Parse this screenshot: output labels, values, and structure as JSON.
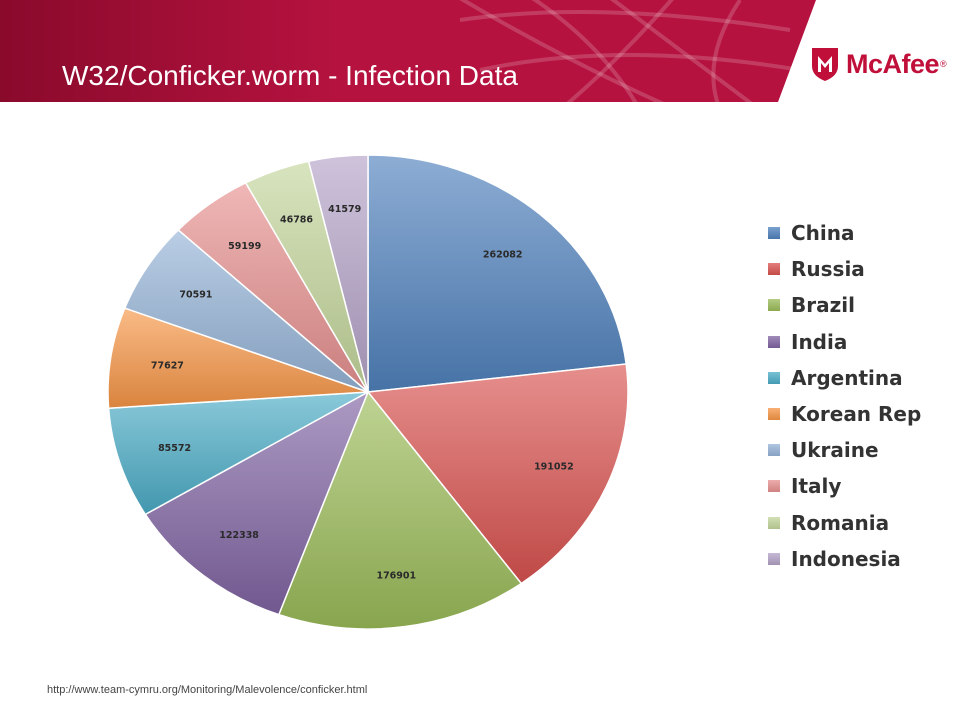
{
  "slide": {
    "title": "W32/Conficker.worm - Infection Data",
    "brand": "McAfee",
    "brand_mark": "®",
    "source_url": "http://www.team-cymru.org/Monitoring/Malevolence/conficker.html"
  },
  "colors": {
    "banner": "#b5123f",
    "banner_dark": "#8a0a2c",
    "brand_red": "#c0103a"
  },
  "chart_data": {
    "type": "pie",
    "title": "",
    "legend_position": "right",
    "slices": [
      {
        "label": "China",
        "value": 262082,
        "color": "#4f81bd"
      },
      {
        "label": "Russia",
        "value": 191052,
        "color": "#d9534f"
      },
      {
        "label": "Brazil",
        "value": 176901,
        "color": "#9bbb59"
      },
      {
        "label": "India",
        "value": 122338,
        "color": "#8064a2"
      },
      {
        "label": "Argentina",
        "value": 85572,
        "color": "#4bacc6"
      },
      {
        "label": "Korean Rep",
        "value": 77627,
        "color": "#f79646"
      },
      {
        "label": "Ukraine",
        "value": 70591,
        "color": "#95b3d7"
      },
      {
        "label": "Italy",
        "value": 59199,
        "color": "#e6908f"
      },
      {
        "label": "Romania",
        "value": 46786,
        "color": "#c3d69b"
      },
      {
        "label": "Indonesia",
        "value": 41579,
        "color": "#b3a2c7"
      }
    ]
  }
}
